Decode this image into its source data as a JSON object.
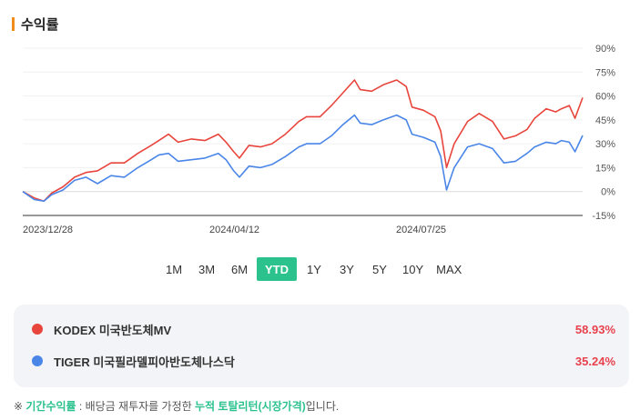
{
  "section": {
    "title": "수익률"
  },
  "periods": {
    "items": [
      "1M",
      "3M",
      "6M",
      "YTD",
      "1Y",
      "3Y",
      "5Y",
      "10Y",
      "MAX"
    ],
    "active": "YTD"
  },
  "colors": {
    "accent": "#2bc28e",
    "series1": "#e8453c",
    "series2": "#4a86e8",
    "positive": "#e8414d",
    "title_bar": "#f08c1a"
  },
  "chart_data": {
    "type": "line",
    "ylim": [
      -15,
      90
    ],
    "yticks": [
      -15,
      0,
      15,
      30,
      45,
      60,
      75,
      90
    ],
    "ytick_labels": [
      "-15%",
      "0%",
      "15%",
      "30%",
      "45%",
      "60%",
      "75%",
      "90%"
    ],
    "x_range": [
      "2023-12-28",
      "2024-10-15"
    ],
    "xtick_labels": [
      "2023/12/28",
      "2024/04/12",
      "2024/07/25"
    ],
    "grid": true,
    "series": [
      {
        "name": "KODEX 미국반도체MV",
        "color": "#e8453c",
        "points": [
          [
            "2023-12-28",
            0
          ],
          [
            "2024-01-03",
            -4
          ],
          [
            "2024-01-08",
            -6
          ],
          [
            "2024-01-12",
            -1
          ],
          [
            "2024-01-18",
            3
          ],
          [
            "2024-01-24",
            9
          ],
          [
            "2024-01-30",
            12
          ],
          [
            "2024-02-05",
            13
          ],
          [
            "2024-02-12",
            18
          ],
          [
            "2024-02-19",
            18
          ],
          [
            "2024-02-26",
            24
          ],
          [
            "2024-03-04",
            29
          ],
          [
            "2024-03-08",
            32
          ],
          [
            "2024-03-13",
            36
          ],
          [
            "2024-03-18",
            31
          ],
          [
            "2024-03-25",
            33
          ],
          [
            "2024-04-01",
            32
          ],
          [
            "2024-04-08",
            36
          ],
          [
            "2024-04-12",
            31
          ],
          [
            "2024-04-16",
            25
          ],
          [
            "2024-04-19",
            21
          ],
          [
            "2024-04-24",
            29
          ],
          [
            "2024-04-30",
            28
          ],
          [
            "2024-05-06",
            30
          ],
          [
            "2024-05-13",
            36
          ],
          [
            "2024-05-20",
            44
          ],
          [
            "2024-05-24",
            47
          ],
          [
            "2024-05-31",
            47
          ],
          [
            "2024-06-06",
            54
          ],
          [
            "2024-06-12",
            62
          ],
          [
            "2024-06-18",
            70
          ],
          [
            "2024-06-21",
            64
          ],
          [
            "2024-06-27",
            63
          ],
          [
            "2024-07-03",
            67
          ],
          [
            "2024-07-10",
            70
          ],
          [
            "2024-07-15",
            66
          ],
          [
            "2024-07-18",
            53
          ],
          [
            "2024-07-24",
            51
          ],
          [
            "2024-07-30",
            47
          ],
          [
            "2024-08-02",
            38
          ],
          [
            "2024-08-05",
            15
          ],
          [
            "2024-08-09",
            30
          ],
          [
            "2024-08-16",
            44
          ],
          [
            "2024-08-22",
            49
          ],
          [
            "2024-08-29",
            44
          ],
          [
            "2024-09-04",
            33
          ],
          [
            "2024-09-10",
            35
          ],
          [
            "2024-09-16",
            39
          ],
          [
            "2024-09-20",
            46
          ],
          [
            "2024-09-26",
            52
          ],
          [
            "2024-10-01",
            50
          ],
          [
            "2024-10-04",
            52
          ],
          [
            "2024-10-08",
            54
          ],
          [
            "2024-10-11",
            46
          ],
          [
            "2024-10-15",
            58.93
          ]
        ]
      },
      {
        "name": "TIGER 미국필라델피아반도체나스닥",
        "color": "#4a86e8",
        "points": [
          [
            "2023-12-28",
            0
          ],
          [
            "2024-01-03",
            -5
          ],
          [
            "2024-01-08",
            -6
          ],
          [
            "2024-01-12",
            -2
          ],
          [
            "2024-01-18",
            1
          ],
          [
            "2024-01-24",
            7
          ],
          [
            "2024-01-30",
            9
          ],
          [
            "2024-02-05",
            5
          ],
          [
            "2024-02-12",
            10
          ],
          [
            "2024-02-19",
            9
          ],
          [
            "2024-02-26",
            15
          ],
          [
            "2024-03-04",
            20
          ],
          [
            "2024-03-08",
            23
          ],
          [
            "2024-03-13",
            24
          ],
          [
            "2024-03-18",
            19
          ],
          [
            "2024-03-25",
            20
          ],
          [
            "2024-04-01",
            21
          ],
          [
            "2024-04-08",
            24
          ],
          [
            "2024-04-12",
            20
          ],
          [
            "2024-04-16",
            13
          ],
          [
            "2024-04-19",
            9
          ],
          [
            "2024-04-24",
            16
          ],
          [
            "2024-04-30",
            15
          ],
          [
            "2024-05-06",
            17
          ],
          [
            "2024-05-13",
            22
          ],
          [
            "2024-05-20",
            28
          ],
          [
            "2024-05-24",
            30
          ],
          [
            "2024-05-31",
            30
          ],
          [
            "2024-06-06",
            35
          ],
          [
            "2024-06-12",
            42
          ],
          [
            "2024-06-18",
            48
          ],
          [
            "2024-06-21",
            43
          ],
          [
            "2024-06-27",
            42
          ],
          [
            "2024-07-03",
            45
          ],
          [
            "2024-07-10",
            48
          ],
          [
            "2024-07-15",
            45
          ],
          [
            "2024-07-18",
            36
          ],
          [
            "2024-07-24",
            34
          ],
          [
            "2024-07-30",
            31
          ],
          [
            "2024-08-02",
            22
          ],
          [
            "2024-08-05",
            1
          ],
          [
            "2024-08-09",
            15
          ],
          [
            "2024-08-16",
            28
          ],
          [
            "2024-08-22",
            30
          ],
          [
            "2024-08-29",
            27
          ],
          [
            "2024-09-04",
            18
          ],
          [
            "2024-09-10",
            19
          ],
          [
            "2024-09-16",
            24
          ],
          [
            "2024-09-20",
            28
          ],
          [
            "2024-09-26",
            31
          ],
          [
            "2024-10-01",
            30
          ],
          [
            "2024-10-04",
            32
          ],
          [
            "2024-10-08",
            31
          ],
          [
            "2024-10-11",
            25
          ],
          [
            "2024-10-15",
            35.24
          ]
        ]
      }
    ]
  },
  "legend": [
    {
      "name": "KODEX 미국반도체MV",
      "value": "58.93%",
      "color": "#e8453c"
    },
    {
      "name": "TIGER 미국필라델피아반도체나스닥",
      "value": "35.24%",
      "color": "#4a86e8"
    }
  ],
  "footnote": {
    "prefix": "※ ",
    "term": "기간수익률",
    "middle": " : 배당금 재투자를 가정한 ",
    "highlight": "누적 토탈리턴(시장가격)",
    "suffix": "입니다."
  }
}
